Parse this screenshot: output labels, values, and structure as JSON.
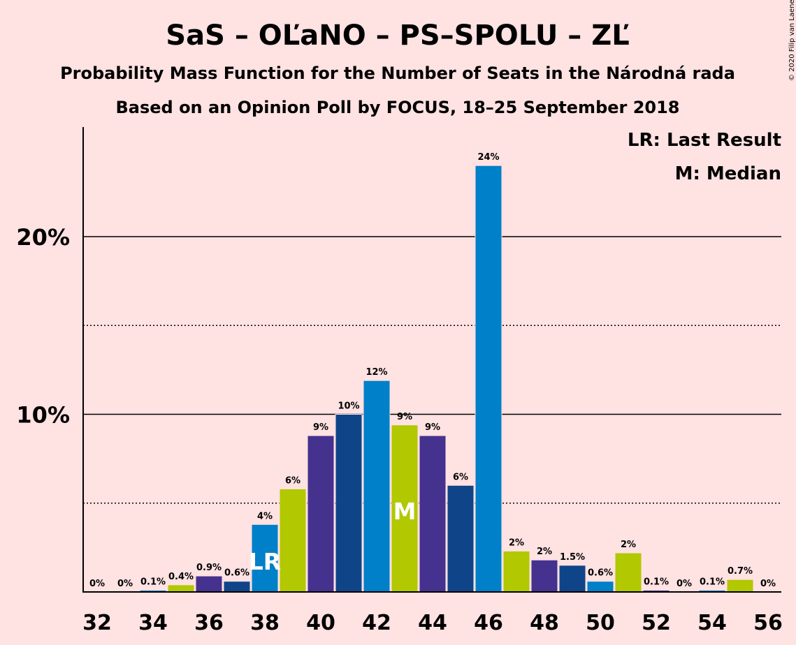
{
  "title": "SaS – OĽaNO – PS–SPOLU – ZĽ",
  "subtitle1": "Probability Mass Function for the Number of Seats in the Národná rada",
  "subtitle2": "Based on an Opinion Poll by FOCUS, 18–25 September 2018",
  "copyright": "© 2020 Filip van Laenen",
  "legend": {
    "last_result": "LR: Last Result",
    "median": "M: Median"
  },
  "colors": {
    "background": "#FFE2E2",
    "palette": [
      "#45318E",
      "#0F4488",
      "#0080C8",
      "#B2C800"
    ]
  },
  "chart_data": {
    "type": "bar",
    "x": [
      32,
      33,
      34,
      35,
      36,
      37,
      38,
      39,
      40,
      41,
      42,
      43,
      44,
      45,
      46,
      47,
      48,
      49,
      50,
      51,
      52,
      53,
      54,
      55,
      56
    ],
    "values": [
      0,
      0,
      0.1,
      0.4,
      0.9,
      0.6,
      3.8,
      5.8,
      8.8,
      10.0,
      11.9,
      9.4,
      8.8,
      6.0,
      24.0,
      2.3,
      1.8,
      1.5,
      0.6,
      2.2,
      0.1,
      0,
      0.1,
      0.7,
      0
    ],
    "data_labels": [
      "0%",
      "0%",
      "0.1%",
      "0.4%",
      "0.9%",
      "0.6%",
      "4%",
      "6%",
      "9%",
      "10%",
      "12%",
      "9%",
      "9%",
      "6%",
      "24%",
      "2%",
      "2%",
      "1.5%",
      "0.6%",
      "2%",
      "0.1%",
      "0%",
      "0.1%",
      "0.7%",
      "0%"
    ],
    "x_tick_labels": [
      "32",
      "34",
      "36",
      "38",
      "40",
      "42",
      "44",
      "46",
      "48",
      "50",
      "52",
      "54",
      "56"
    ],
    "y_tick_labels": [
      "10%",
      "20%"
    ],
    "ylim": [
      0,
      26
    ],
    "last_result": 38,
    "median": 43,
    "last_result_marker": "LR",
    "median_marker": "M",
    "grid": {
      "solid": [
        10,
        20
      ],
      "dotted": [
        5,
        15
      ]
    }
  }
}
